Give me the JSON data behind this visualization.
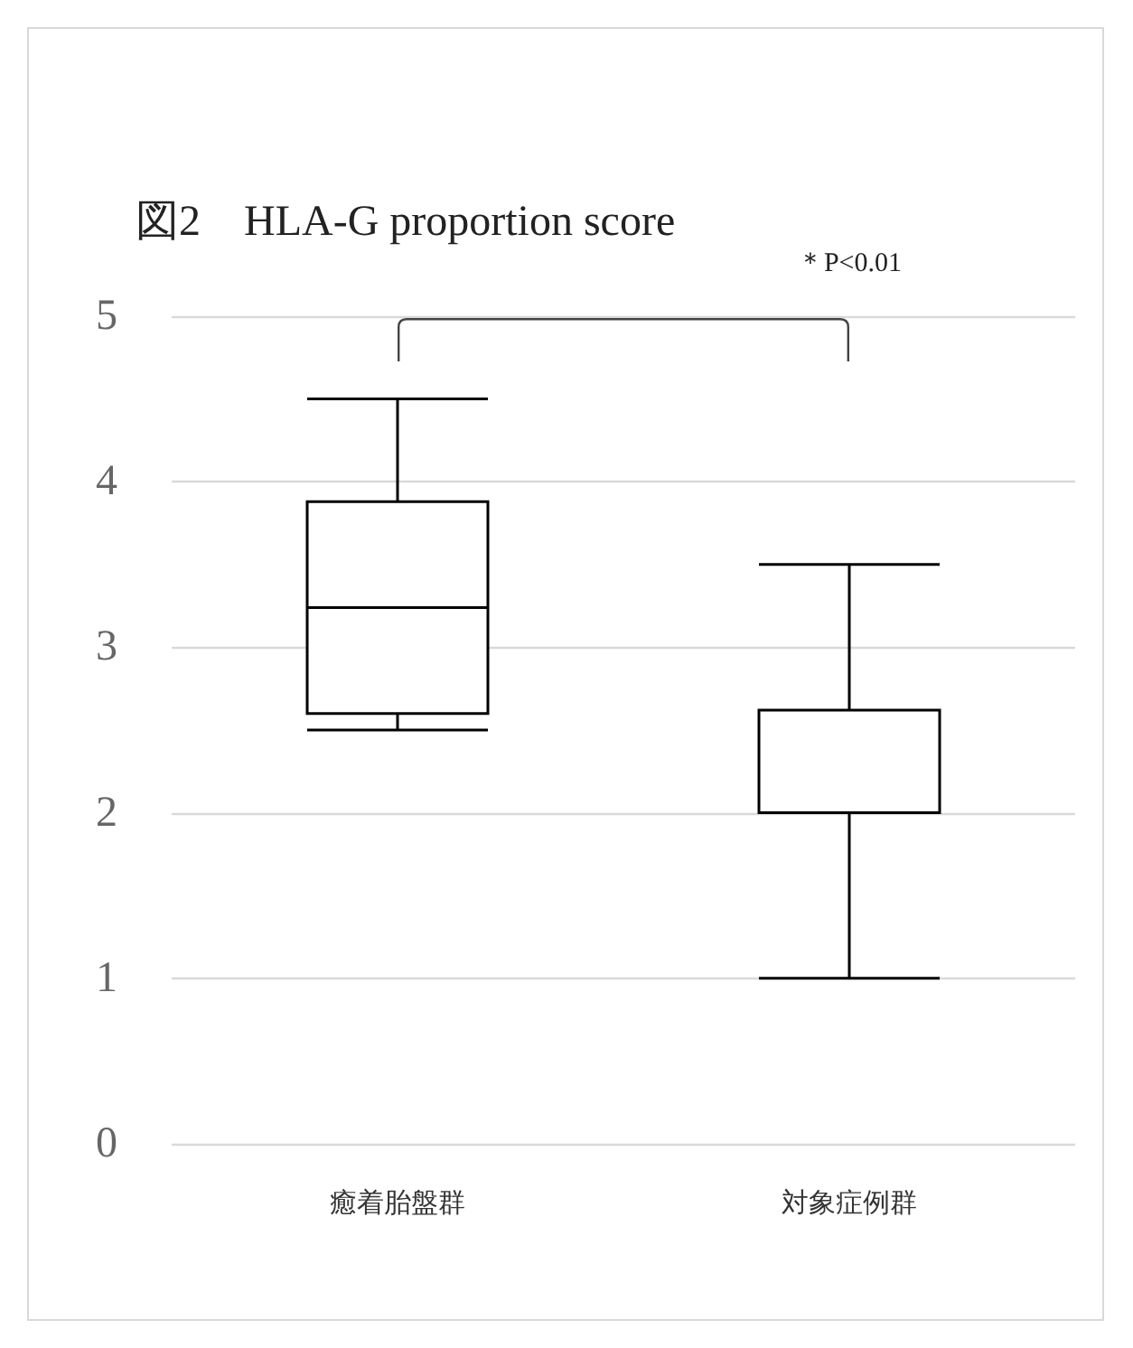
{
  "chart_data": {
    "type": "box",
    "title": "図2　HLA-G proportion score",
    "categories": [
      "癒着胎盤群",
      "対象症例群"
    ],
    "boxes": [
      {
        "low": 2.5,
        "q1": 2.6,
        "median": 3.24,
        "q3": 3.88,
        "high": 4.5
      },
      {
        "low": 1.0,
        "q1": 2.0,
        "median": 2.0,
        "q3": 2.62,
        "high": 3.5
      }
    ],
    "color": "#000000",
    "ylim": [
      0,
      5
    ],
    "yticks": [
      0,
      1,
      2,
      3,
      4,
      5
    ],
    "grid": "y",
    "annotations": [
      "＊P<0.01"
    ]
  }
}
